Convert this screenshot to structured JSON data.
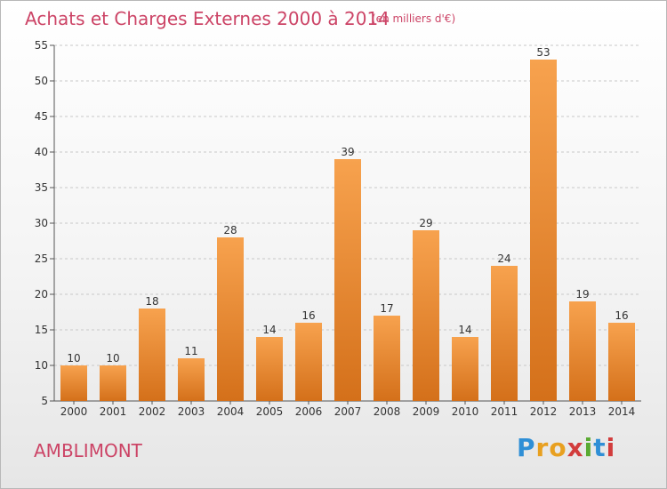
{
  "chart_data": {
    "type": "bar",
    "title": "Achats et Charges Externes 2000 à 2014",
    "subtitle": "(en milliers d'€)",
    "categories": [
      "2000",
      "2001",
      "2002",
      "2003",
      "2004",
      "2005",
      "2006",
      "2007",
      "2008",
      "2009",
      "2010",
      "2011",
      "2012",
      "2013",
      "2014"
    ],
    "values": [
      10,
      10,
      18,
      11,
      28,
      14,
      16,
      39,
      17,
      29,
      14,
      24,
      53,
      19,
      16
    ],
    "ylim": [
      5,
      55
    ],
    "yticks": [
      5,
      10,
      15,
      20,
      25,
      30,
      35,
      40,
      45,
      50,
      55
    ],
    "grid": true,
    "bar_color_top": "#f7a24e",
    "bar_color_bottom": "#d4701a"
  },
  "footer": {
    "town": "AMBLIMONT",
    "logo": {
      "letters": [
        "P",
        "r",
        "o",
        "x",
        "i",
        "t",
        "i"
      ],
      "colors": [
        "#2f8fd6",
        "#e8a020",
        "#e8a020",
        "#d23c3c",
        "#5aaa32",
        "#2f8fd6",
        "#d23c3c"
      ]
    }
  }
}
